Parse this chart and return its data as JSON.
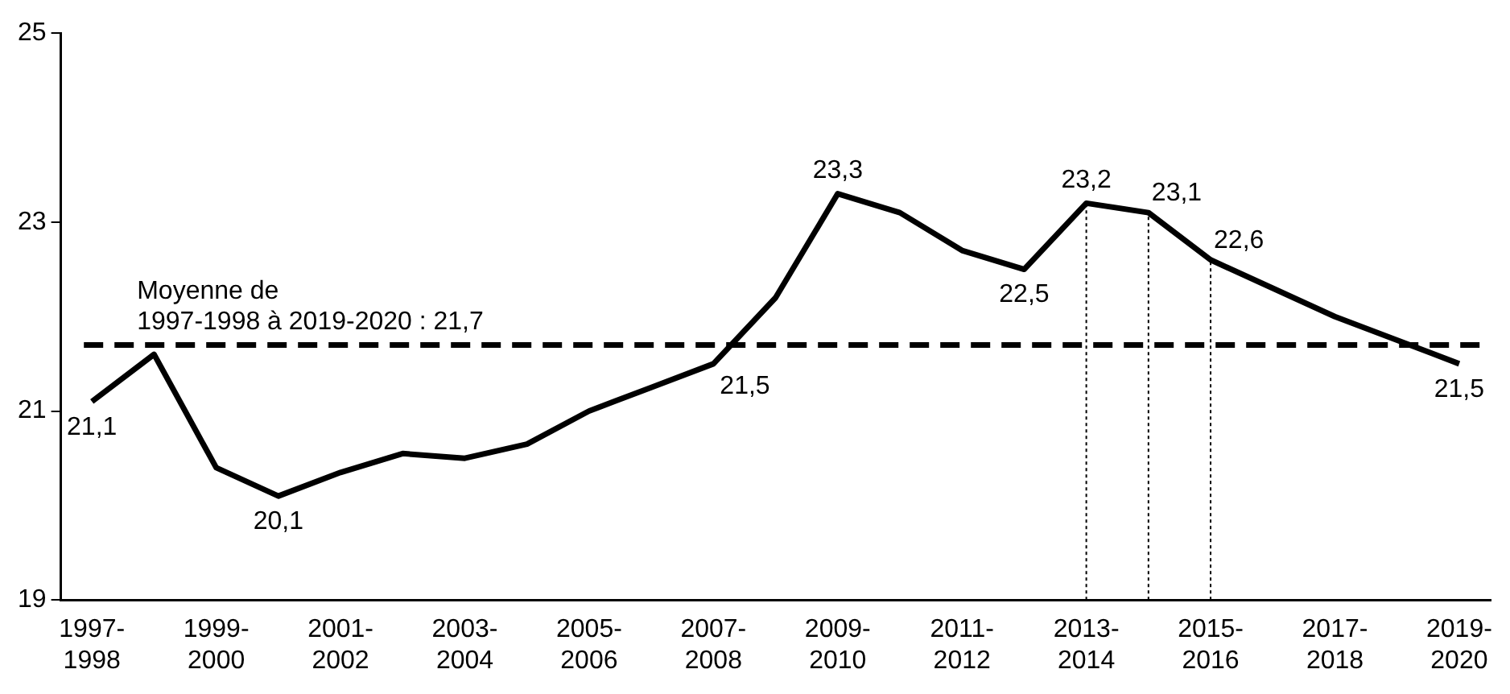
{
  "chart_data": {
    "type": "line",
    "categories": [
      "1997-1998",
      null,
      "1999-2000",
      null,
      "2001-2002",
      null,
      "2003-2004",
      null,
      "2005-2006",
      null,
      "2007-2008",
      null,
      "2009-2010",
      null,
      "2011-2012",
      null,
      "2013-2014",
      null,
      "2015-2016",
      null,
      "2017-2018",
      null,
      "2019-2020"
    ],
    "series": [
      {
        "color": "#000000",
        "values": [
          21.1,
          21.6,
          20.4,
          20.1,
          20.35,
          20.55,
          20.5,
          20.65,
          21.0,
          21.25,
          21.5,
          22.2,
          23.3,
          23.1,
          22.7,
          22.5,
          23.2,
          23.1,
          22.6,
          22.3,
          22.0,
          21.75,
          21.5
        ],
        "value_labels": [
          "21,1",
          null,
          null,
          "20,1",
          null,
          null,
          null,
          null,
          null,
          null,
          "21,5",
          null,
          "23,3",
          null,
          null,
          "22,5",
          "23,2",
          "23,1",
          "22,6",
          null,
          null,
          null,
          "21,5"
        ]
      }
    ],
    "ylim": [
      19,
      25
    ],
    "yticks": [
      19,
      21,
      23,
      25
    ],
    "grid": false,
    "legend": false,
    "marker": "none",
    "line_style": "solid",
    "ref_lines": [
      {
        "axis": "y",
        "value": 21.7,
        "label": "Moyenne de\n1997-1998 à 2019-2020 : 21,7",
        "color": "#000000",
        "line_style": "dashed"
      },
      {
        "axis": "x",
        "value": "2013-2014",
        "color": "#000000",
        "line_style": "dotted"
      },
      {
        "axis": "x",
        "value": null,
        "color": "#000000",
        "line_style": "dotted"
      },
      {
        "axis": "x",
        "value": "2015-2016",
        "color": "#000000",
        "line_style": "dotted"
      }
    ]
  }
}
